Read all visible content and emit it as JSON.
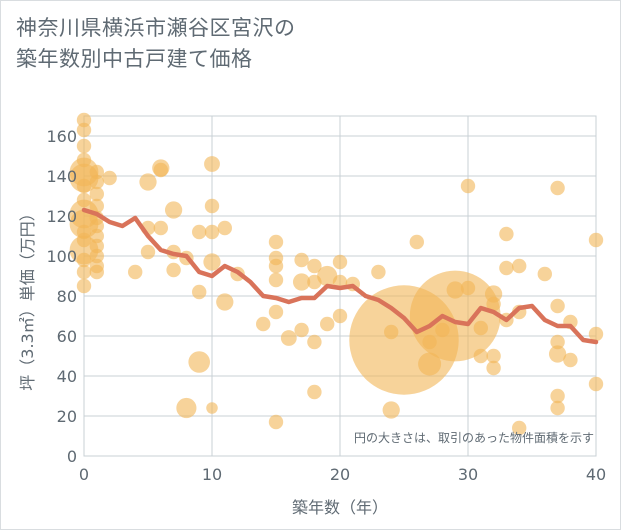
{
  "title": {
    "line1": "神奈川県横浜市瀬谷区宮沢の",
    "line2": "築年数別中古戸建て価格"
  },
  "colors": {
    "bubble": "#f2b557",
    "line": "#d9735a",
    "grid": "#c8d0d6",
    "text": "#5f6a73"
  },
  "chart_data": {
    "type": "scatter",
    "xlabel": "築年数（年）",
    "ylabel": "坪（3.3㎡）単価（万円）",
    "note": "円の大きさは、取引のあった物件面積を示す",
    "xlim": [
      0,
      40
    ],
    "ylim": [
      0,
      170
    ],
    "xticks": [
      0,
      10,
      20,
      30,
      40
    ],
    "yticks": [
      0,
      20,
      40,
      60,
      80,
      100,
      120,
      140,
      160
    ],
    "grid": true,
    "bubbles": [
      {
        "x": 0,
        "y": 168,
        "r": 1
      },
      {
        "x": 0,
        "y": 163,
        "r": 1
      },
      {
        "x": 0,
        "y": 155,
        "r": 1
      },
      {
        "x": 0,
        "y": 148,
        "r": 1
      },
      {
        "x": 0,
        "y": 142,
        "r": 2
      },
      {
        "x": 0,
        "y": 139,
        "r": 2
      },
      {
        "x": 0,
        "y": 135,
        "r": 1
      },
      {
        "x": 0,
        "y": 128,
        "r": 1
      },
      {
        "x": 0,
        "y": 121,
        "r": 2
      },
      {
        "x": 0,
        "y": 116,
        "r": 2
      },
      {
        "x": 0,
        "y": 112,
        "r": 1
      },
      {
        "x": 0,
        "y": 108,
        "r": 1
      },
      {
        "x": 0,
        "y": 103,
        "r": 2
      },
      {
        "x": 0,
        "y": 98,
        "r": 1
      },
      {
        "x": 0,
        "y": 92,
        "r": 1
      },
      {
        "x": 0,
        "y": 85,
        "r": 1
      },
      {
        "x": 1,
        "y": 142,
        "r": 1
      },
      {
        "x": 1,
        "y": 137,
        "r": 1
      },
      {
        "x": 1,
        "y": 131,
        "r": 1
      },
      {
        "x": 1,
        "y": 125,
        "r": 1
      },
      {
        "x": 1,
        "y": 119,
        "r": 1
      },
      {
        "x": 1,
        "y": 115,
        "r": 1
      },
      {
        "x": 1,
        "y": 110,
        "r": 1
      },
      {
        "x": 1,
        "y": 105,
        "r": 1
      },
      {
        "x": 1,
        "y": 100,
        "r": 1
      },
      {
        "x": 1,
        "y": 95,
        "r": 1
      },
      {
        "x": 1,
        "y": 92,
        "r": 1
      },
      {
        "x": 2,
        "y": 139,
        "r": 1
      },
      {
        "x": 4,
        "y": 92,
        "r": 1
      },
      {
        "x": 5,
        "y": 137,
        "r": 1.2
      },
      {
        "x": 5,
        "y": 114,
        "r": 1
      },
      {
        "x": 5,
        "y": 102,
        "r": 1
      },
      {
        "x": 6,
        "y": 144,
        "r": 1.2
      },
      {
        "x": 6,
        "y": 143,
        "r": 1
      },
      {
        "x": 6,
        "y": 114,
        "r": 1
      },
      {
        "x": 7,
        "y": 123,
        "r": 1.2
      },
      {
        "x": 7,
        "y": 102,
        "r": 1
      },
      {
        "x": 7,
        "y": 93,
        "r": 1
      },
      {
        "x": 8,
        "y": 99,
        "r": 1
      },
      {
        "x": 8,
        "y": 24,
        "r": 1.4
      },
      {
        "x": 9,
        "y": 112,
        "r": 1
      },
      {
        "x": 9,
        "y": 82,
        "r": 1
      },
      {
        "x": 9,
        "y": 47,
        "r": 1.5
      },
      {
        "x": 10,
        "y": 146,
        "r": 1.1
      },
      {
        "x": 10,
        "y": 125,
        "r": 1
      },
      {
        "x": 10,
        "y": 112,
        "r": 1
      },
      {
        "x": 10,
        "y": 97,
        "r": 1.2
      },
      {
        "x": 10,
        "y": 24,
        "r": 0.8
      },
      {
        "x": 11,
        "y": 114,
        "r": 1
      },
      {
        "x": 11,
        "y": 77,
        "r": 1.2
      },
      {
        "x": 12,
        "y": 91,
        "r": 1
      },
      {
        "x": 14,
        "y": 66,
        "r": 1
      },
      {
        "x": 15,
        "y": 107,
        "r": 1
      },
      {
        "x": 15,
        "y": 99,
        "r": 1
      },
      {
        "x": 15,
        "y": 95,
        "r": 1
      },
      {
        "x": 15,
        "y": 88,
        "r": 1
      },
      {
        "x": 15,
        "y": 72,
        "r": 1
      },
      {
        "x": 15,
        "y": 17,
        "r": 1
      },
      {
        "x": 16,
        "y": 59,
        "r": 1.1
      },
      {
        "x": 17,
        "y": 98,
        "r": 1
      },
      {
        "x": 17,
        "y": 87,
        "r": 1.2
      },
      {
        "x": 17,
        "y": 63,
        "r": 1
      },
      {
        "x": 18,
        "y": 95,
        "r": 1
      },
      {
        "x": 18,
        "y": 87,
        "r": 1
      },
      {
        "x": 18,
        "y": 57,
        "r": 1
      },
      {
        "x": 18,
        "y": 32,
        "r": 1
      },
      {
        "x": 19,
        "y": 90,
        "r": 1.4
      },
      {
        "x": 19,
        "y": 66,
        "r": 1
      },
      {
        "x": 20,
        "y": 97,
        "r": 1
      },
      {
        "x": 20,
        "y": 87,
        "r": 1
      },
      {
        "x": 20,
        "y": 70,
        "r": 1
      },
      {
        "x": 21,
        "y": 86,
        "r": 1
      },
      {
        "x": 23,
        "y": 92,
        "r": 1
      },
      {
        "x": 24,
        "y": 62,
        "r": 1
      },
      {
        "x": 24,
        "y": 23,
        "r": 1.2
      },
      {
        "x": 25,
        "y": 58,
        "r": 7.6
      },
      {
        "x": 26,
        "y": 107,
        "r": 1
      },
      {
        "x": 27,
        "y": 57,
        "r": 1
      },
      {
        "x": 27,
        "y": 46,
        "r": 1.6
      },
      {
        "x": 28,
        "y": 63,
        "r": 1
      },
      {
        "x": 29,
        "y": 70,
        "r": 6.3
      },
      {
        "x": 29,
        "y": 83,
        "r": 1.2
      },
      {
        "x": 30,
        "y": 135,
        "r": 1
      },
      {
        "x": 30,
        "y": 84,
        "r": 1
      },
      {
        "x": 31,
        "y": 64,
        "r": 1
      },
      {
        "x": 31,
        "y": 50,
        "r": 1
      },
      {
        "x": 32,
        "y": 81,
        "r": 1.2
      },
      {
        "x": 32,
        "y": 76,
        "r": 1
      },
      {
        "x": 32,
        "y": 50,
        "r": 1
      },
      {
        "x": 32,
        "y": 44,
        "r": 1
      },
      {
        "x": 33,
        "y": 111,
        "r": 1
      },
      {
        "x": 33,
        "y": 94,
        "r": 1
      },
      {
        "x": 33,
        "y": 68,
        "r": 1
      },
      {
        "x": 34,
        "y": 95,
        "r": 1
      },
      {
        "x": 34,
        "y": 72,
        "r": 1
      },
      {
        "x": 34,
        "y": 14,
        "r": 1
      },
      {
        "x": 36,
        "y": 91,
        "r": 1
      },
      {
        "x": 37,
        "y": 134,
        "r": 1
      },
      {
        "x": 37,
        "y": 75,
        "r": 1
      },
      {
        "x": 37,
        "y": 57,
        "r": 1
      },
      {
        "x": 37,
        "y": 51,
        "r": 1.2
      },
      {
        "x": 37,
        "y": 30,
        "r": 1
      },
      {
        "x": 37,
        "y": 24,
        "r": 1
      },
      {
        "x": 38,
        "y": 67,
        "r": 1
      },
      {
        "x": 38,
        "y": 48,
        "r": 1
      },
      {
        "x": 40,
        "y": 108,
        "r": 1
      },
      {
        "x": 40,
        "y": 61,
        "r": 1
      },
      {
        "x": 40,
        "y": 36,
        "r": 1
      }
    ],
    "series": [
      {
        "x": [
          0,
          1,
          2,
          3,
          4,
          5,
          6,
          7,
          8,
          9,
          10,
          11,
          12,
          13,
          14,
          15,
          16,
          17,
          18,
          19,
          20,
          21,
          22,
          23,
          24,
          25,
          26,
          27,
          28,
          29,
          30,
          31,
          32,
          33,
          34,
          35,
          36,
          37,
          38,
          39,
          40
        ],
        "y": [
          123,
          121,
          117,
          115,
          119,
          110,
          103,
          101,
          100,
          92,
          90,
          95,
          92,
          87,
          80,
          79,
          77,
          79,
          79,
          85,
          84,
          85,
          80,
          78,
          74,
          69,
          62,
          65,
          70,
          67,
          66,
          74,
          72,
          68,
          74,
          75,
          68,
          65,
          65,
          58,
          57
        ]
      }
    ]
  }
}
